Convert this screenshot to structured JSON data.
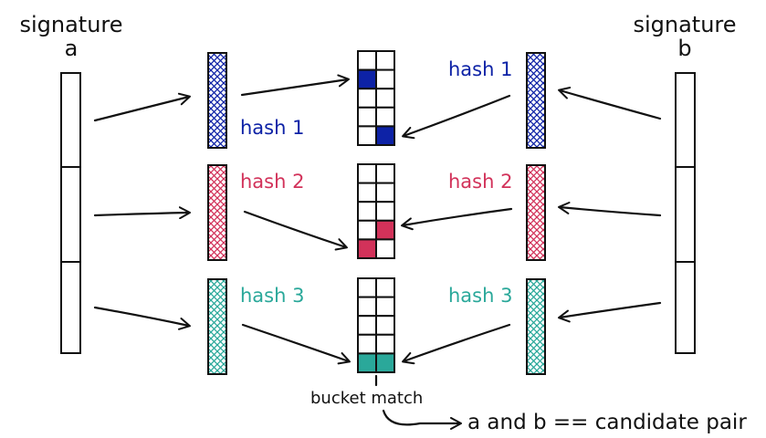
{
  "signature_a": {
    "label": "signature",
    "letter": "a"
  },
  "signature_b": {
    "label": "signature",
    "letter": "b"
  },
  "hashes": [
    {
      "label": "hash 1",
      "color": "#0d22a6"
    },
    {
      "label": "hash 2",
      "color": "#d2325a"
    },
    {
      "label": "hash 3",
      "color": "#2aa89a"
    }
  ],
  "bucket_note": "bucket match",
  "conclusion": "a and b == candidate pair",
  "stroke_color": "#111111"
}
